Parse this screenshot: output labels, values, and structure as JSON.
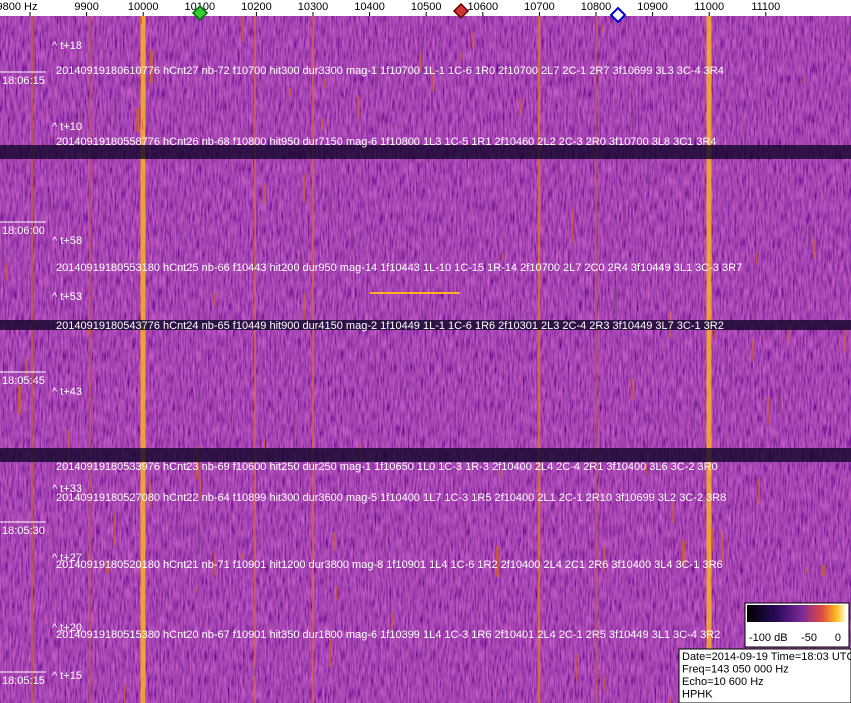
{
  "freq_axis": {
    "labels": [
      "9800 Hz",
      "9900",
      "10000",
      "10100",
      "10200",
      "10300",
      "10400",
      "10500",
      "10600",
      "10700",
      "10800",
      "10900",
      "11000",
      "11100"
    ]
  },
  "time_labels": [
    "18:06:15",
    "18:06:00",
    "18:05:45",
    "18:05:30",
    "18:05:15"
  ],
  "markers": [
    "^ t+18",
    "^ t+10",
    "^ t+58",
    "^ t+53",
    "^ t+43",
    "^ t+33",
    "^ t+27",
    "^ t+20",
    "^ t+15"
  ],
  "detections": [
    "20140919180610776 hCnt27 nb-72 f10700 hit300 dur3300 mag-1 1f10700 1L-1 1C-6 1R0 2f10700 2L7 2C-1 2R7 3f10699 3L3 3C-4 3R4",
    "20140919180558776 hCnt26 nb-68 f10800 hit950 dur7150 mag-6 1f10800 1L3 1C-5 1R1 2f10460 2L2 2C-3 2R0 3f10700 3L8 3C1 3R4",
    "20140919180553180 hCnt25 nb-66 f10443 hit200 dur950 mag-14 1f10443 1L-10 1C-15 1R-14 2f10700 2L7 2C0 2R4 3f10449 3L1 3C-3 3R7",
    "20140919180543776 hCnt24 nb-65 f10449 hit900 dur4150 mag-2 1f10449 1L-1 1C-6 1R6 2f10301 2L3 2C-4 2R3 3f10449 3L7 3C-1 3R2",
    "20140919180533976 hCnt23 nb-69 f10600 hit250 dur250 mag-1 1f10650 1L0 1C-3 1R-3 2f10400 2L4 2C-4 2R1 3f10400 3L6 3C-2 3R0",
    "20140919180527080 hCnt22 nb-64 f10899 hit300 dur3600 mag-5 1f10400 1L7 1C-3 1R5 2f10400 2L1 2C-1 2R10 3f10699 3L2 3C-2 3R8",
    "20140919180520180 hCnt21 nb-71 f10901 hit1200 dur3800 mag-8 1f10901 1L4 1C-6 1R2 2f10400 2L4 2C1 2R6 3f10400 3L4 3C-1 3R6",
    "20140919180515380 hCnt20 nb-67 f10901 hit350 dur1800 mag-6 1f10399 1L4 1C-3 1R6 2f10401 2L4 2C-1 2R5 3f10449 3L1 3C-4 3R2"
  ],
  "colorbar": {
    "labels": [
      "-100 dB",
      "-50",
      "0"
    ]
  },
  "info": [
    "Date=2014-09-19 Time=18:03 UTC",
    "Freq=143 050 000 Hz",
    "Echo=10 600 Hz",
    "HPHK"
  ]
}
